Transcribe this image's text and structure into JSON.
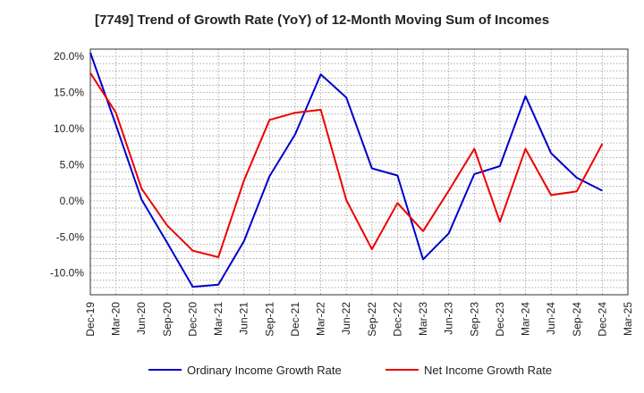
{
  "chart_data": {
    "type": "line",
    "title": "[7749]  Trend of Growth Rate (YoY) of 12-Month Moving Sum of Incomes",
    "x": [
      "Dec-19",
      "Mar-20",
      "Jun-20",
      "Sep-20",
      "Dec-20",
      "Mar-21",
      "Jun-21",
      "Sep-21",
      "Dec-21",
      "Mar-22",
      "Jun-22",
      "Sep-22",
      "Dec-22",
      "Mar-23",
      "Jun-23",
      "Sep-23",
      "Dec-23",
      "Mar-24",
      "Jun-24",
      "Sep-24",
      "Dec-24",
      "Mar-25"
    ],
    "yticks": [
      "20.0%",
      "15.0%",
      "10.0%",
      "5.0%",
      "0.0%",
      "-5.0%",
      "-10.0%"
    ],
    "ylim": [
      -13,
      21
    ],
    "grid": true,
    "legend_position": "bottom",
    "series": [
      {
        "name": "Ordinary Income Growth Rate",
        "color": "#0000cc",
        "values": [
          20.5,
          10.5,
          0.2,
          -5.8,
          -11.9,
          -11.6,
          -5.6,
          3.4,
          9.2,
          17.5,
          14.3,
          4.5,
          3.5,
          -8.1,
          -4.5,
          3.7,
          4.8,
          14.5,
          6.6,
          3.2,
          1.4,
          null
        ]
      },
      {
        "name": "Net Income Growth Rate",
        "color": "#ee0000",
        "values": [
          17.7,
          12.2,
          1.7,
          -3.4,
          -6.9,
          -7.8,
          2.8,
          11.2,
          12.2,
          12.6,
          0.1,
          -6.7,
          -0.3,
          -4.2,
          1.4,
          7.2,
          -2.9,
          7.2,
          0.8,
          1.3,
          7.9,
          null
        ]
      }
    ]
  }
}
